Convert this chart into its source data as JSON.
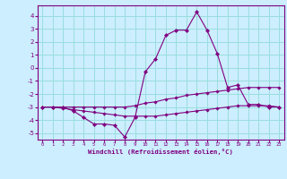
{
  "x": [
    0,
    1,
    2,
    3,
    4,
    5,
    6,
    7,
    8,
    9,
    10,
    11,
    12,
    13,
    14,
    15,
    16,
    17,
    18,
    19,
    20,
    21,
    22,
    23
  ],
  "windchill": [
    -3,
    -3,
    -3,
    -3.3,
    -3.8,
    -4.3,
    -4.3,
    -4.4,
    -5.3,
    -3.8,
    -0.3,
    0.7,
    2.5,
    2.9,
    2.9,
    4.3,
    2.9,
    1.1,
    -1.5,
    -1.3,
    -2.8,
    -2.8,
    -3.0,
    -3.0
  ],
  "upper_line": [
    -3,
    -3,
    -3,
    -3,
    -3,
    -3,
    -3,
    -3,
    -3,
    -2.9,
    -2.7,
    -2.6,
    -2.4,
    -2.3,
    -2.1,
    -2.0,
    -1.9,
    -1.8,
    -1.7,
    -1.6,
    -1.5,
    -1.5,
    -1.5,
    -1.5
  ],
  "lower_line": [
    -3,
    -3,
    -3.1,
    -3.2,
    -3.3,
    -3.4,
    -3.5,
    -3.6,
    -3.7,
    -3.7,
    -3.7,
    -3.7,
    -3.6,
    -3.5,
    -3.4,
    -3.3,
    -3.2,
    -3.1,
    -3.0,
    -2.9,
    -2.9,
    -2.9,
    -2.9,
    -3.0
  ],
  "color_main": "#800080",
  "bg_color": "#cceeff",
  "grid_color": "#99dddd",
  "xlabel": "Windchill (Refroidissement éolien,°C)",
  "ylim": [
    -5.5,
    4.8
  ],
  "xlim": [
    -0.5,
    23.5
  ],
  "yticks": [
    -5,
    -4,
    -3,
    -2,
    -1,
    0,
    1,
    2,
    3,
    4
  ],
  "xticks": [
    0,
    1,
    2,
    3,
    4,
    5,
    6,
    7,
    8,
    9,
    10,
    11,
    12,
    13,
    14,
    15,
    16,
    17,
    18,
    19,
    20,
    21,
    22,
    23
  ]
}
